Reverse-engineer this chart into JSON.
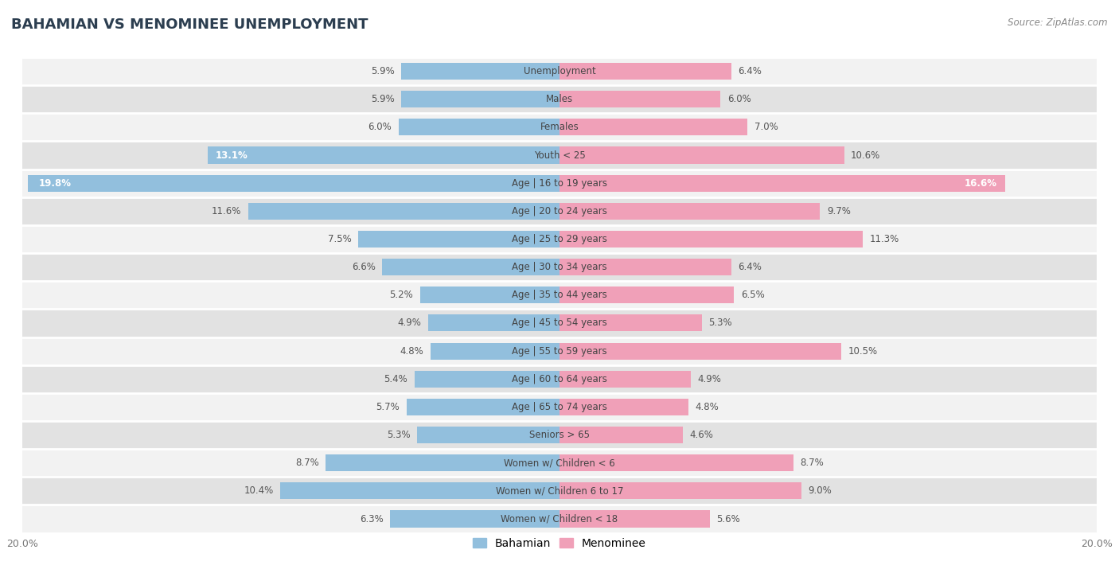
{
  "title": "BAHAMIAN VS MENOMINEE UNEMPLOYMENT",
  "source": "Source: ZipAtlas.com",
  "categories": [
    "Unemployment",
    "Males",
    "Females",
    "Youth < 25",
    "Age | 16 to 19 years",
    "Age | 20 to 24 years",
    "Age | 25 to 29 years",
    "Age | 30 to 34 years",
    "Age | 35 to 44 years",
    "Age | 45 to 54 years",
    "Age | 55 to 59 years",
    "Age | 60 to 64 years",
    "Age | 65 to 74 years",
    "Seniors > 65",
    "Women w/ Children < 6",
    "Women w/ Children 6 to 17",
    "Women w/ Children < 18"
  ],
  "bahamian": [
    5.9,
    5.9,
    6.0,
    13.1,
    19.8,
    11.6,
    7.5,
    6.6,
    5.2,
    4.9,
    4.8,
    5.4,
    5.7,
    5.3,
    8.7,
    10.4,
    6.3
  ],
  "menominee": [
    6.4,
    6.0,
    7.0,
    10.6,
    16.6,
    9.7,
    11.3,
    6.4,
    6.5,
    5.3,
    10.5,
    4.9,
    4.8,
    4.6,
    8.7,
    9.0,
    5.6
  ],
  "bahamian_color": "#92bfdd",
  "menominee_color": "#f0a0b8",
  "row_bg_light": "#f2f2f2",
  "row_bg_dark": "#e2e2e2",
  "fig_bg": "#ffffff",
  "xlim": 20.0,
  "label_fontsize": 8.5,
  "value_fontsize": 8.5,
  "title_fontsize": 13,
  "bar_height": 0.6
}
